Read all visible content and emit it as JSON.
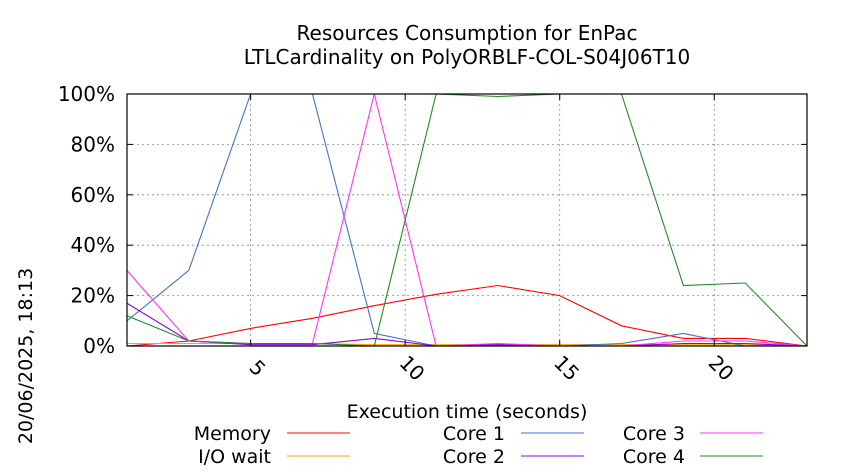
{
  "chart_data": {
    "type": "line",
    "title": [
      "Resources Consumption for EnPac",
      "LTLCardinality on PolyORBLF-COL-S04J06T10"
    ],
    "xlabel": "Execution time (seconds)",
    "ylabel": "",
    "timestamp": "20/06/2025, 18:13",
    "xlim": [
      1,
      23
    ],
    "ylim": [
      0,
      100
    ],
    "xticks": [
      5,
      10,
      15,
      20
    ],
    "yticks": [
      0,
      20,
      40,
      60,
      80,
      100
    ],
    "ytick_labels": [
      "0%",
      "20%",
      "40%",
      "60%",
      "80%",
      "100%"
    ],
    "grid": true,
    "legend_placement": "bottom",
    "series": [
      {
        "name": "Memory",
        "color": "#ff0000",
        "x": [
          1,
          3,
          5,
          7,
          9,
          11,
          13,
          15,
          17,
          19,
          21,
          23
        ],
        "y": [
          0,
          2,
          7,
          11,
          16,
          20.5,
          24,
          20,
          8,
          3,
          3,
          0
        ]
      },
      {
        "name": "I/O wait",
        "color": "#ffa500",
        "x": [
          1,
          3,
          5,
          7,
          9,
          11,
          13,
          15,
          17,
          19,
          21,
          23
        ],
        "y": [
          1,
          1,
          1,
          1,
          0.5,
          0.5,
          0.5,
          0.5,
          0.5,
          0.5,
          0.5,
          0
        ]
      },
      {
        "name": "Core 1",
        "color": "#4472c4",
        "x": [
          1,
          3,
          5,
          7,
          9,
          11,
          13,
          15,
          17,
          19,
          21,
          23
        ],
        "y": [
          10,
          30,
          100,
          100,
          5,
          0,
          0.5,
          0,
          1,
          5,
          0,
          0
        ]
      },
      {
        "name": "Core 2",
        "color": "#9400d3",
        "x": [
          1,
          3,
          5,
          7,
          9,
          11,
          13,
          15,
          17,
          19,
          21,
          23
        ],
        "y": [
          17,
          2,
          0.5,
          0.5,
          3,
          0,
          0.5,
          0,
          0,
          1,
          1,
          0
        ]
      },
      {
        "name": "Core 3",
        "color": "#ff33ff",
        "x": [
          1,
          3,
          5,
          7,
          9,
          11,
          13,
          15,
          17,
          19,
          21,
          23
        ],
        "y": [
          30,
          2,
          1,
          1,
          100,
          0,
          1,
          0,
          0,
          2,
          2,
          0
        ]
      },
      {
        "name": "Core 4",
        "color": "#228b22",
        "x": [
          1,
          3,
          5,
          7,
          9,
          11,
          13,
          15,
          17,
          19,
          21,
          23
        ],
        "y": [
          12,
          2,
          1,
          1,
          0,
          100,
          99,
          100,
          100,
          24,
          25,
          0
        ]
      }
    ]
  }
}
